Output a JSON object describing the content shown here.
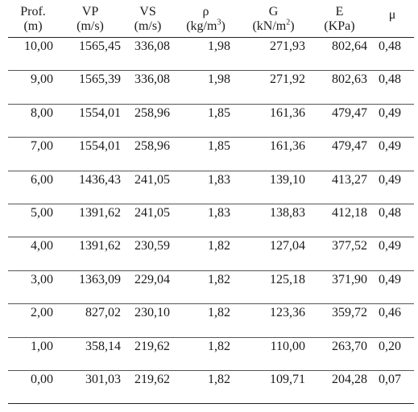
{
  "headers": [
    {
      "line1": "Prof.",
      "line2": "(m)"
    },
    {
      "line1": "VP",
      "line2": "(m/s)"
    },
    {
      "line1": "VS",
      "line2": "(m/s)"
    },
    {
      "line1": "ρ",
      "line2_pre": "(kg/m",
      "line2_sup": "3",
      "line2_post": ")"
    },
    {
      "line1": "G",
      "line2_pre": "(kN/m",
      "line2_sup": "2",
      "line2_post": ")"
    },
    {
      "line1": "E",
      "line2": "(KPa)"
    },
    {
      "line1": "μ",
      "line2": ""
    }
  ],
  "rows": [
    [
      "10,00",
      "1565,45",
      "336,08",
      "1,98",
      "271,93",
      "802,64",
      "0,48"
    ],
    [
      "9,00",
      "1565,39",
      "336,08",
      "1,98",
      "271,92",
      "802,63",
      "0,48"
    ],
    [
      "8,00",
      "1554,01",
      "258,96",
      "1,85",
      "161,36",
      "479,47",
      "0,49"
    ],
    [
      "7,00",
      "1554,01",
      "258,96",
      "1,85",
      "161,36",
      "479,47",
      "0,49"
    ],
    [
      "6,00",
      "1436,43",
      "241,05",
      "1,83",
      "139,10",
      "413,27",
      "0,49"
    ],
    [
      "5,00",
      "1391,62",
      "241,05",
      "1,83",
      "138,83",
      "412,18",
      "0,48"
    ],
    [
      "4,00",
      "1391,62",
      "230,59",
      "1,82",
      "127,04",
      "377,52",
      "0,49"
    ],
    [
      "3,00",
      "1363,09",
      "229,04",
      "1,82",
      "125,18",
      "371,90",
      "0,49"
    ],
    [
      "2,00",
      "827,02",
      "230,10",
      "1,82",
      "123,36",
      "359,72",
      "0,46"
    ],
    [
      "1,00",
      "358,14",
      "219,62",
      "1,82",
      "110,00",
      "263,70",
      "0,20"
    ],
    [
      "0,00",
      "301,03",
      "219,62",
      "1,82",
      "109,71",
      "204,28",
      "0,07"
    ]
  ]
}
